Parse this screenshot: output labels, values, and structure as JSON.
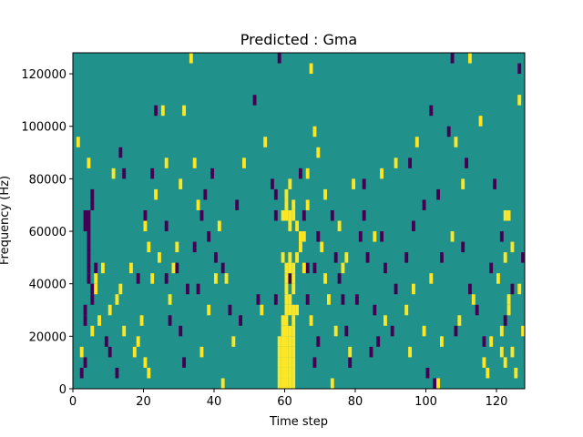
{
  "chart_data": {
    "type": "heatmap",
    "title": "Predicted : Gma",
    "xlabel": "Time step",
    "ylabel": "Frequency (Hz)",
    "xlim": [
      0,
      128
    ],
    "ylim": [
      0,
      128000
    ],
    "x_ticks": [
      0,
      20,
      40,
      60,
      80,
      100,
      120
    ],
    "y_ticks": [
      0,
      20000,
      40000,
      60000,
      80000,
      100000,
      120000
    ],
    "y_tick_labels": [
      "0",
      "20000",
      "40000",
      "60000",
      "80000",
      "100000",
      "120000"
    ],
    "grid": false,
    "legend": "none",
    "colormap": {
      "low": "#440154",
      "mid": "#21918c",
      "high": "#fde725"
    },
    "background_value": 0,
    "cell_width_steps": 1,
    "cell_height_hz": 4000,
    "sparse_cells": [
      {
        "t": 2,
        "f": 4000,
        "v": -1
      },
      {
        "t": 3,
        "f": 8000,
        "v": -1
      },
      {
        "t": 3,
        "f": 24000,
        "v": -1
      },
      {
        "t": 3,
        "f": 28000,
        "v": -1
      },
      {
        "t": 3,
        "f": 60000,
        "v": -1
      },
      {
        "t": 3,
        "f": 64000,
        "v": -1
      },
      {
        "t": 4,
        "f": 40000,
        "v": -1
      },
      {
        "t": 4,
        "f": 44000,
        "v": -1
      },
      {
        "t": 4,
        "f": 48000,
        "v": -1
      },
      {
        "t": 4,
        "f": 52000,
        "v": -1
      },
      {
        "t": 4,
        "f": 56000,
        "v": -1
      },
      {
        "t": 4,
        "f": 60000,
        "v": -1
      },
      {
        "t": 4,
        "f": 64000,
        "v": -1
      },
      {
        "t": 5,
        "f": 32000,
        "v": -1
      },
      {
        "t": 5,
        "f": 36000,
        "v": -1
      },
      {
        "t": 5,
        "f": 68000,
        "v": -1
      },
      {
        "t": 5,
        "f": 72000,
        "v": -1
      },
      {
        "t": 6,
        "f": 44000,
        "v": -1
      },
      {
        "t": 9,
        "f": 16000,
        "v": -1
      },
      {
        "t": 10,
        "f": 12000,
        "v": -1
      },
      {
        "t": 12,
        "f": 4000,
        "v": -1
      },
      {
        "t": 13,
        "f": 88000,
        "v": -1
      },
      {
        "t": 14,
        "f": 80000,
        "v": -1
      },
      {
        "t": 18,
        "f": 40000,
        "v": -1
      },
      {
        "t": 20,
        "f": 64000,
        "v": -1
      },
      {
        "t": 22,
        "f": 80000,
        "v": -1
      },
      {
        "t": 23,
        "f": 104000,
        "v": -1
      },
      {
        "t": 26,
        "f": 60000,
        "v": -1
      },
      {
        "t": 26,
        "f": 40000,
        "v": -1
      },
      {
        "t": 27,
        "f": 24000,
        "v": -1
      },
      {
        "t": 29,
        "f": 44000,
        "v": -1
      },
      {
        "t": 30,
        "f": 20000,
        "v": -1
      },
      {
        "t": 31,
        "f": 8000,
        "v": -1
      },
      {
        "t": 32,
        "f": 36000,
        "v": -1
      },
      {
        "t": 34,
        "f": 52000,
        "v": -1
      },
      {
        "t": 35,
        "f": 36000,
        "v": -1
      },
      {
        "t": 36,
        "f": 64000,
        "v": -1
      },
      {
        "t": 37,
        "f": 72000,
        "v": -1
      },
      {
        "t": 38,
        "f": 56000,
        "v": -1
      },
      {
        "t": 39,
        "f": 80000,
        "v": -1
      },
      {
        "t": 40,
        "f": 48000,
        "v": -1
      },
      {
        "t": 42,
        "f": 44000,
        "v": -1
      },
      {
        "t": 44,
        "f": 28000,
        "v": -1
      },
      {
        "t": 46,
        "f": 68000,
        "v": -1
      },
      {
        "t": 47,
        "f": 24000,
        "v": -1
      },
      {
        "t": 51,
        "f": 108000,
        "v": -1
      },
      {
        "t": 52,
        "f": 32000,
        "v": -1
      },
      {
        "t": 56,
        "f": 76000,
        "v": -1
      },
      {
        "t": 57,
        "f": 72000,
        "v": -1
      },
      {
        "t": 57,
        "f": 64000,
        "v": -1
      },
      {
        "t": 57,
        "f": 32000,
        "v": -1
      },
      {
        "t": 58,
        "f": 124000,
        "v": -1
      },
      {
        "t": 61,
        "f": 40000,
        "v": -1
      },
      {
        "t": 64,
        "f": 80000,
        "v": -1
      },
      {
        "t": 65,
        "f": 64000,
        "v": -1
      },
      {
        "t": 66,
        "f": 32000,
        "v": -1
      },
      {
        "t": 66,
        "f": 44000,
        "v": -1
      },
      {
        "t": 68,
        "f": 44000,
        "v": -1
      },
      {
        "t": 68,
        "f": 8000,
        "v": -1
      },
      {
        "t": 69,
        "f": 56000,
        "v": -1
      },
      {
        "t": 69,
        "f": 16000,
        "v": -1
      },
      {
        "t": 73,
        "f": 64000,
        "v": -1
      },
      {
        "t": 74,
        "f": 48000,
        "v": -1
      },
      {
        "t": 75,
        "f": 40000,
        "v": -1
      },
      {
        "t": 76,
        "f": 32000,
        "v": -1
      },
      {
        "t": 77,
        "f": 20000,
        "v": -1
      },
      {
        "t": 78,
        "f": 8000,
        "v": -1
      },
      {
        "t": 80,
        "f": 32000,
        "v": -1
      },
      {
        "t": 81,
        "f": 56000,
        "v": -1
      },
      {
        "t": 82,
        "f": 64000,
        "v": -1
      },
      {
        "t": 82,
        "f": 76000,
        "v": -1
      },
      {
        "t": 83,
        "f": 48000,
        "v": -1
      },
      {
        "t": 84,
        "f": 12000,
        "v": -1
      },
      {
        "t": 85,
        "f": 28000,
        "v": -1
      },
      {
        "t": 86,
        "f": 16000,
        "v": -1
      },
      {
        "t": 87,
        "f": 56000,
        "v": -1
      },
      {
        "t": 88,
        "f": 44000,
        "v": -1
      },
      {
        "t": 90,
        "f": 20000,
        "v": -1
      },
      {
        "t": 91,
        "f": 36000,
        "v": -1
      },
      {
        "t": 94,
        "f": 48000,
        "v": -1
      },
      {
        "t": 95,
        "f": 84000,
        "v": -1
      },
      {
        "t": 96,
        "f": 60000,
        "v": -1
      },
      {
        "t": 99,
        "f": 68000,
        "v": -1
      },
      {
        "t": 100,
        "f": 4000,
        "v": -1
      },
      {
        "t": 101,
        "f": 104000,
        "v": -1
      },
      {
        "t": 102,
        "f": 0,
        "v": -1
      },
      {
        "t": 103,
        "f": 72000,
        "v": -1
      },
      {
        "t": 104,
        "f": 48000,
        "v": -1
      },
      {
        "t": 106,
        "f": 96000,
        "v": -1
      },
      {
        "t": 107,
        "f": 128000,
        "v": -1
      },
      {
        "t": 108,
        "f": 20000,
        "v": -1
      },
      {
        "t": 110,
        "f": 52000,
        "v": -1
      },
      {
        "t": 111,
        "f": 84000,
        "v": -1
      },
      {
        "t": 112,
        "f": 36000,
        "v": -1
      },
      {
        "t": 114,
        "f": 28000,
        "v": -1
      },
      {
        "t": 116,
        "f": 16000,
        "v": -1
      },
      {
        "t": 118,
        "f": 44000,
        "v": -1
      },
      {
        "t": 119,
        "f": 76000,
        "v": -1
      },
      {
        "t": 121,
        "f": 56000,
        "v": -1
      },
      {
        "t": 122,
        "f": 24000,
        "v": -1
      },
      {
        "t": 124,
        "f": 36000,
        "v": -1
      },
      {
        "t": 126,
        "f": 120000,
        "v": -1
      },
      {
        "t": 127,
        "f": 48000,
        "v": -1
      },
      {
        "t": 1,
        "f": 92000,
        "v": 1
      },
      {
        "t": 2,
        "f": 12000,
        "v": 1
      },
      {
        "t": 4,
        "f": 84000,
        "v": 1
      },
      {
        "t": 5,
        "f": 20000,
        "v": 1
      },
      {
        "t": 6,
        "f": 36000,
        "v": 1
      },
      {
        "t": 6,
        "f": 40000,
        "v": 1
      },
      {
        "t": 7,
        "f": 24000,
        "v": 1
      },
      {
        "t": 8,
        "f": 44000,
        "v": 1
      },
      {
        "t": 10,
        "f": 28000,
        "v": 1
      },
      {
        "t": 11,
        "f": 80000,
        "v": 1
      },
      {
        "t": 12,
        "f": 32000,
        "v": 1
      },
      {
        "t": 13,
        "f": 36000,
        "v": 1
      },
      {
        "t": 14,
        "f": 20000,
        "v": 1
      },
      {
        "t": 16,
        "f": 44000,
        "v": 1
      },
      {
        "t": 17,
        "f": 12000,
        "v": 1
      },
      {
        "t": 18,
        "f": 16000,
        "v": 1
      },
      {
        "t": 19,
        "f": 24000,
        "v": 1
      },
      {
        "t": 20,
        "f": 8000,
        "v": 1
      },
      {
        "t": 20,
        "f": 60000,
        "v": 1
      },
      {
        "t": 21,
        "f": 52000,
        "v": 1
      },
      {
        "t": 21,
        "f": 4000,
        "v": 1
      },
      {
        "t": 22,
        "f": 40000,
        "v": 1
      },
      {
        "t": 23,
        "f": 72000,
        "v": 1
      },
      {
        "t": 24,
        "f": 48000,
        "v": 1
      },
      {
        "t": 25,
        "f": 104000,
        "v": 1
      },
      {
        "t": 26,
        "f": 84000,
        "v": 1
      },
      {
        "t": 27,
        "f": 32000,
        "v": 1
      },
      {
        "t": 28,
        "f": 44000,
        "v": 1
      },
      {
        "t": 29,
        "f": 52000,
        "v": 1
      },
      {
        "t": 30,
        "f": 76000,
        "v": 1
      },
      {
        "t": 31,
        "f": 104000,
        "v": 1
      },
      {
        "t": 33,
        "f": 128000,
        "v": 1
      },
      {
        "t": 34,
        "f": 84000,
        "v": 1
      },
      {
        "t": 35,
        "f": 68000,
        "v": 1
      },
      {
        "t": 36,
        "f": 12000,
        "v": 1
      },
      {
        "t": 38,
        "f": 28000,
        "v": 1
      },
      {
        "t": 40,
        "f": 40000,
        "v": 1
      },
      {
        "t": 41,
        "f": 60000,
        "v": 1
      },
      {
        "t": 42,
        "f": 0,
        "v": 1
      },
      {
        "t": 43,
        "f": 40000,
        "v": 1
      },
      {
        "t": 45,
        "f": 16000,
        "v": 1
      },
      {
        "t": 48,
        "f": 84000,
        "v": 1
      },
      {
        "t": 53,
        "f": 28000,
        "v": 1
      },
      {
        "t": 54,
        "f": 92000,
        "v": 1
      },
      {
        "t": 58,
        "f": 0,
        "v": 1
      },
      {
        "t": 58,
        "f": 4000,
        "v": 1
      },
      {
        "t": 58,
        "f": 8000,
        "v": 1
      },
      {
        "t": 58,
        "f": 12000,
        "v": 1
      },
      {
        "t": 58,
        "f": 16000,
        "v": 1
      },
      {
        "t": 59,
        "f": 0,
        "v": 1
      },
      {
        "t": 59,
        "f": 4000,
        "v": 1
      },
      {
        "t": 59,
        "f": 8000,
        "v": 1
      },
      {
        "t": 59,
        "f": 12000,
        "v": 1
      },
      {
        "t": 59,
        "f": 16000,
        "v": 1
      },
      {
        "t": 59,
        "f": 20000,
        "v": 1
      },
      {
        "t": 59,
        "f": 24000,
        "v": 1
      },
      {
        "t": 59,
        "f": 48000,
        "v": 1
      },
      {
        "t": 59,
        "f": 64000,
        "v": 1
      },
      {
        "t": 60,
        "f": 0,
        "v": 1
      },
      {
        "t": 60,
        "f": 4000,
        "v": 1
      },
      {
        "t": 60,
        "f": 8000,
        "v": 1
      },
      {
        "t": 60,
        "f": 12000,
        "v": 1
      },
      {
        "t": 60,
        "f": 16000,
        "v": 1
      },
      {
        "t": 60,
        "f": 20000,
        "v": 1
      },
      {
        "t": 60,
        "f": 24000,
        "v": 1
      },
      {
        "t": 60,
        "f": 28000,
        "v": 1
      },
      {
        "t": 60,
        "f": 32000,
        "v": 1
      },
      {
        "t": 60,
        "f": 36000,
        "v": 1
      },
      {
        "t": 60,
        "f": 40000,
        "v": 1
      },
      {
        "t": 60,
        "f": 44000,
        "v": 1
      },
      {
        "t": 60,
        "f": 64000,
        "v": 1
      },
      {
        "t": 60,
        "f": 68000,
        "v": 1
      },
      {
        "t": 60,
        "f": 72000,
        "v": 1
      },
      {
        "t": 61,
        "f": 0,
        "v": 1
      },
      {
        "t": 61,
        "f": 4000,
        "v": 1
      },
      {
        "t": 61,
        "f": 8000,
        "v": 1
      },
      {
        "t": 61,
        "f": 12000,
        "v": 1
      },
      {
        "t": 61,
        "f": 16000,
        "v": 1
      },
      {
        "t": 61,
        "f": 20000,
        "v": 1
      },
      {
        "t": 61,
        "f": 28000,
        "v": 1
      },
      {
        "t": 61,
        "f": 32000,
        "v": 1
      },
      {
        "t": 61,
        "f": 44000,
        "v": 1
      },
      {
        "t": 61,
        "f": 48000,
        "v": 1
      },
      {
        "t": 61,
        "f": 60000,
        "v": 1
      },
      {
        "t": 61,
        "f": 64000,
        "v": 1
      },
      {
        "t": 61,
        "f": 76000,
        "v": 1
      },
      {
        "t": 62,
        "f": 0,
        "v": 1
      },
      {
        "t": 62,
        "f": 4000,
        "v": 1
      },
      {
        "t": 62,
        "f": 8000,
        "v": 1
      },
      {
        "t": 62,
        "f": 12000,
        "v": 1
      },
      {
        "t": 62,
        "f": 16000,
        "v": 1
      },
      {
        "t": 62,
        "f": 20000,
        "v": 1
      },
      {
        "t": 62,
        "f": 24000,
        "v": 1
      },
      {
        "t": 62,
        "f": 28000,
        "v": 1
      },
      {
        "t": 62,
        "f": 36000,
        "v": 1
      },
      {
        "t": 62,
        "f": 40000,
        "v": 1
      },
      {
        "t": 62,
        "f": 44000,
        "v": 1
      },
      {
        "t": 62,
        "f": 64000,
        "v": 1
      },
      {
        "t": 62,
        "f": 68000,
        "v": 1
      },
      {
        "t": 63,
        "f": 28000,
        "v": 1
      },
      {
        "t": 63,
        "f": 48000,
        "v": 1
      },
      {
        "t": 63,
        "f": 60000,
        "v": 1
      },
      {
        "t": 64,
        "f": 52000,
        "v": 1
      },
      {
        "t": 64,
        "f": 56000,
        "v": 1
      },
      {
        "t": 65,
        "f": 56000,
        "v": 1
      },
      {
        "t": 65,
        "f": 44000,
        "v": 1
      },
      {
        "t": 66,
        "f": 68000,
        "v": 1
      },
      {
        "t": 66,
        "f": 80000,
        "v": 1
      },
      {
        "t": 67,
        "f": 120000,
        "v": 1
      },
      {
        "t": 67,
        "f": 24000,
        "v": 1
      },
      {
        "t": 68,
        "f": 96000,
        "v": 1
      },
      {
        "t": 69,
        "f": 88000,
        "v": 1
      },
      {
        "t": 70,
        "f": 52000,
        "v": 1
      },
      {
        "t": 71,
        "f": 40000,
        "v": 1
      },
      {
        "t": 71,
        "f": 72000,
        "v": 1
      },
      {
        "t": 72,
        "f": 32000,
        "v": 1
      },
      {
        "t": 73,
        "f": 0,
        "v": 1
      },
      {
        "t": 74,
        "f": 20000,
        "v": 1
      },
      {
        "t": 75,
        "f": 60000,
        "v": 1
      },
      {
        "t": 76,
        "f": 44000,
        "v": 1
      },
      {
        "t": 77,
        "f": 48000,
        "v": 1
      },
      {
        "t": 78,
        "f": 12000,
        "v": 1
      },
      {
        "t": 79,
        "f": 76000,
        "v": 1
      },
      {
        "t": 85,
        "f": 56000,
        "v": 1
      },
      {
        "t": 87,
        "f": 80000,
        "v": 1
      },
      {
        "t": 88,
        "f": 24000,
        "v": 1
      },
      {
        "t": 91,
        "f": 84000,
        "v": 1
      },
      {
        "t": 94,
        "f": 28000,
        "v": 1
      },
      {
        "t": 95,
        "f": 12000,
        "v": 1
      },
      {
        "t": 96,
        "f": 36000,
        "v": 1
      },
      {
        "t": 97,
        "f": 92000,
        "v": 1
      },
      {
        "t": 99,
        "f": 20000,
        "v": 1
      },
      {
        "t": 101,
        "f": 40000,
        "v": 1
      },
      {
        "t": 103,
        "f": 0,
        "v": 1
      },
      {
        "t": 104,
        "f": 16000,
        "v": 1
      },
      {
        "t": 107,
        "f": 56000,
        "v": 1
      },
      {
        "t": 108,
        "f": 92000,
        "v": 1
      },
      {
        "t": 109,
        "f": 24000,
        "v": 1
      },
      {
        "t": 110,
        "f": 76000,
        "v": 1
      },
      {
        "t": 112,
        "f": 128000,
        "v": 1
      },
      {
        "t": 113,
        "f": 32000,
        "v": 1
      },
      {
        "t": 115,
        "f": 100000,
        "v": 1
      },
      {
        "t": 116,
        "f": 8000,
        "v": 1
      },
      {
        "t": 117,
        "f": 4000,
        "v": 1
      },
      {
        "t": 118,
        "f": 16000,
        "v": 1
      },
      {
        "t": 120,
        "f": 40000,
        "v": 1
      },
      {
        "t": 121,
        "f": 12000,
        "v": 1
      },
      {
        "t": 121,
        "f": 20000,
        "v": 1
      },
      {
        "t": 122,
        "f": 8000,
        "v": 1
      },
      {
        "t": 122,
        "f": 48000,
        "v": 1
      },
      {
        "t": 122,
        "f": 64000,
        "v": 1
      },
      {
        "t": 123,
        "f": 28000,
        "v": 1
      },
      {
        "t": 123,
        "f": 32000,
        "v": 1
      },
      {
        "t": 123,
        "f": 64000,
        "v": 1
      },
      {
        "t": 124,
        "f": 12000,
        "v": 1
      },
      {
        "t": 124,
        "f": 52000,
        "v": 1
      },
      {
        "t": 125,
        "f": 4000,
        "v": 1
      },
      {
        "t": 126,
        "f": 36000,
        "v": 1
      },
      {
        "t": 126,
        "f": 108000,
        "v": 1
      },
      {
        "t": 127,
        "f": 20000,
        "v": 1
      }
    ]
  }
}
